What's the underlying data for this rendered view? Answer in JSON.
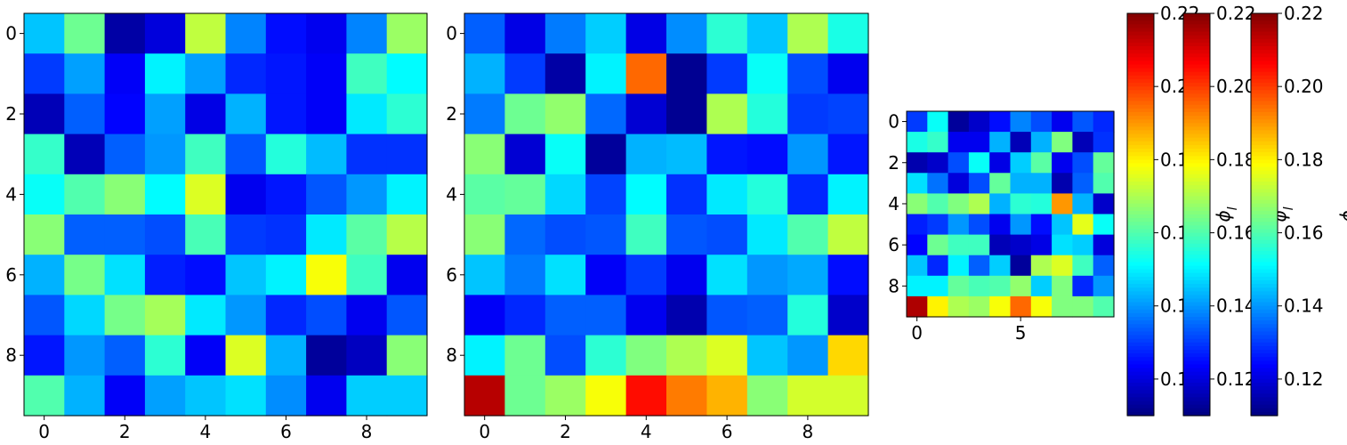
{
  "chart_data": [
    {
      "type": "heatmap",
      "rows": 10,
      "cols": 10,
      "x_ticks": [
        "0",
        "2",
        "4",
        "6",
        "8"
      ],
      "y_ticks": [
        "0",
        "2",
        "4",
        "6",
        "8"
      ],
      "values": [
        [
          0.145,
          0.163,
          0.114,
          0.12,
          0.172,
          0.138,
          0.125,
          0.122,
          0.138,
          0.168
        ],
        [
          0.13,
          0.141,
          0.123,
          0.15,
          0.141,
          0.128,
          0.126,
          0.123,
          0.158,
          0.151
        ],
        [
          0.116,
          0.134,
          0.124,
          0.141,
          0.121,
          0.143,
          0.126,
          0.123,
          0.149,
          0.156
        ],
        [
          0.157,
          0.116,
          0.134,
          0.14,
          0.158,
          0.133,
          0.155,
          0.144,
          0.129,
          0.129
        ],
        [
          0.152,
          0.16,
          0.166,
          0.151,
          0.175,
          0.122,
          0.126,
          0.133,
          0.14,
          0.15
        ],
        [
          0.166,
          0.134,
          0.134,
          0.132,
          0.159,
          0.13,
          0.129,
          0.149,
          0.161,
          0.171
        ],
        [
          0.143,
          0.164,
          0.148,
          0.127,
          0.125,
          0.145,
          0.15,
          0.178,
          0.158,
          0.122
        ],
        [
          0.133,
          0.147,
          0.164,
          0.169,
          0.149,
          0.14,
          0.128,
          0.132,
          0.122,
          0.133
        ],
        [
          0.126,
          0.14,
          0.134,
          0.156,
          0.123,
          0.175,
          0.143,
          0.113,
          0.117,
          0.166
        ],
        [
          0.16,
          0.143,
          0.123,
          0.141,
          0.145,
          0.148,
          0.139,
          0.122,
          0.146,
          0.146
        ]
      ]
    },
    {
      "type": "heatmap",
      "rows": 10,
      "cols": 10,
      "x_ticks": [
        "0",
        "2",
        "4",
        "6",
        "8"
      ],
      "y_ticks": [
        "0",
        "2",
        "4",
        "6",
        "8"
      ],
      "values": [
        [
          0.134,
          0.121,
          0.137,
          0.146,
          0.121,
          0.139,
          0.156,
          0.145,
          0.17,
          0.154
        ],
        [
          0.143,
          0.13,
          0.114,
          0.15,
          0.195,
          0.112,
          0.13,
          0.152,
          0.132,
          0.122
        ],
        [
          0.137,
          0.163,
          0.167,
          0.135,
          0.119,
          0.112,
          0.17,
          0.155,
          0.13,
          0.131
        ],
        [
          0.166,
          0.119,
          0.152,
          0.113,
          0.143,
          0.144,
          0.126,
          0.125,
          0.14,
          0.126
        ],
        [
          0.161,
          0.162,
          0.147,
          0.131,
          0.151,
          0.129,
          0.149,
          0.155,
          0.128,
          0.15
        ],
        [
          0.166,
          0.135,
          0.132,
          0.133,
          0.158,
          0.133,
          0.132,
          0.149,
          0.16,
          0.172
        ],
        [
          0.145,
          0.137,
          0.148,
          0.123,
          0.13,
          0.122,
          0.148,
          0.14,
          0.142,
          0.125
        ],
        [
          0.123,
          0.128,
          0.134,
          0.134,
          0.122,
          0.115,
          0.133,
          0.134,
          0.155,
          0.118
        ],
        [
          0.15,
          0.163,
          0.132,
          0.156,
          0.165,
          0.17,
          0.175,
          0.145,
          0.14,
          0.183
        ],
        [
          0.214,
          0.163,
          0.168,
          0.178,
          0.205,
          0.193,
          0.187,
          0.166,
          0.174,
          0.174
        ]
      ]
    },
    {
      "type": "heatmap",
      "rows": 10,
      "cols": 10,
      "x_ticks": [
        "0",
        "5"
      ],
      "y_ticks": [
        "0",
        "2",
        "4",
        "6",
        "8"
      ],
      "values": [
        [
          0.13,
          0.152,
          0.113,
          0.118,
          0.125,
          0.138,
          0.132,
          0.122,
          0.133,
          0.128
        ],
        [
          0.154,
          0.157,
          0.122,
          0.122,
          0.143,
          0.116,
          0.143,
          0.165,
          0.116,
          0.129
        ],
        [
          0.115,
          0.118,
          0.132,
          0.152,
          0.121,
          0.146,
          0.161,
          0.122,
          0.132,
          0.162
        ],
        [
          0.148,
          0.136,
          0.12,
          0.132,
          0.162,
          0.143,
          0.143,
          0.115,
          0.134,
          0.16
        ],
        [
          0.166,
          0.16,
          0.165,
          0.17,
          0.143,
          0.156,
          0.155,
          0.19,
          0.143,
          0.118
        ],
        [
          0.127,
          0.13,
          0.14,
          0.132,
          0.122,
          0.14,
          0.125,
          0.145,
          0.176,
          0.152
        ],
        [
          0.124,
          0.163,
          0.158,
          0.158,
          0.116,
          0.118,
          0.121,
          0.148,
          0.146,
          0.12
        ],
        [
          0.145,
          0.128,
          0.15,
          0.134,
          0.146,
          0.113,
          0.17,
          0.175,
          0.158,
          0.134
        ],
        [
          0.15,
          0.15,
          0.162,
          0.159,
          0.16,
          0.167,
          0.146,
          0.165,
          0.128,
          0.14
        ],
        [
          0.215,
          0.18,
          0.17,
          0.168,
          0.178,
          0.195,
          0.178,
          0.165,
          0.165,
          0.16
        ]
      ]
    }
  ],
  "colorbars": [
    {
      "label": "ϕ_l",
      "min": 0.11,
      "max": 0.22,
      "ticks": [
        "0.12",
        "0.14",
        "0.16",
        "0.18",
        "0.20",
        "0.22"
      ]
    },
    {
      "label": "ϕ_l",
      "min": 0.11,
      "max": 0.22,
      "ticks": [
        "0.12",
        "0.14",
        "0.16",
        "0.18",
        "0.20",
        "0.22"
      ]
    },
    {
      "label": "ϕ_l",
      "min": 0.11,
      "max": 0.22,
      "ticks": [
        "0.12",
        "0.14",
        "0.16",
        "0.18",
        "0.20",
        "0.22"
      ]
    }
  ],
  "colormap": "jet"
}
